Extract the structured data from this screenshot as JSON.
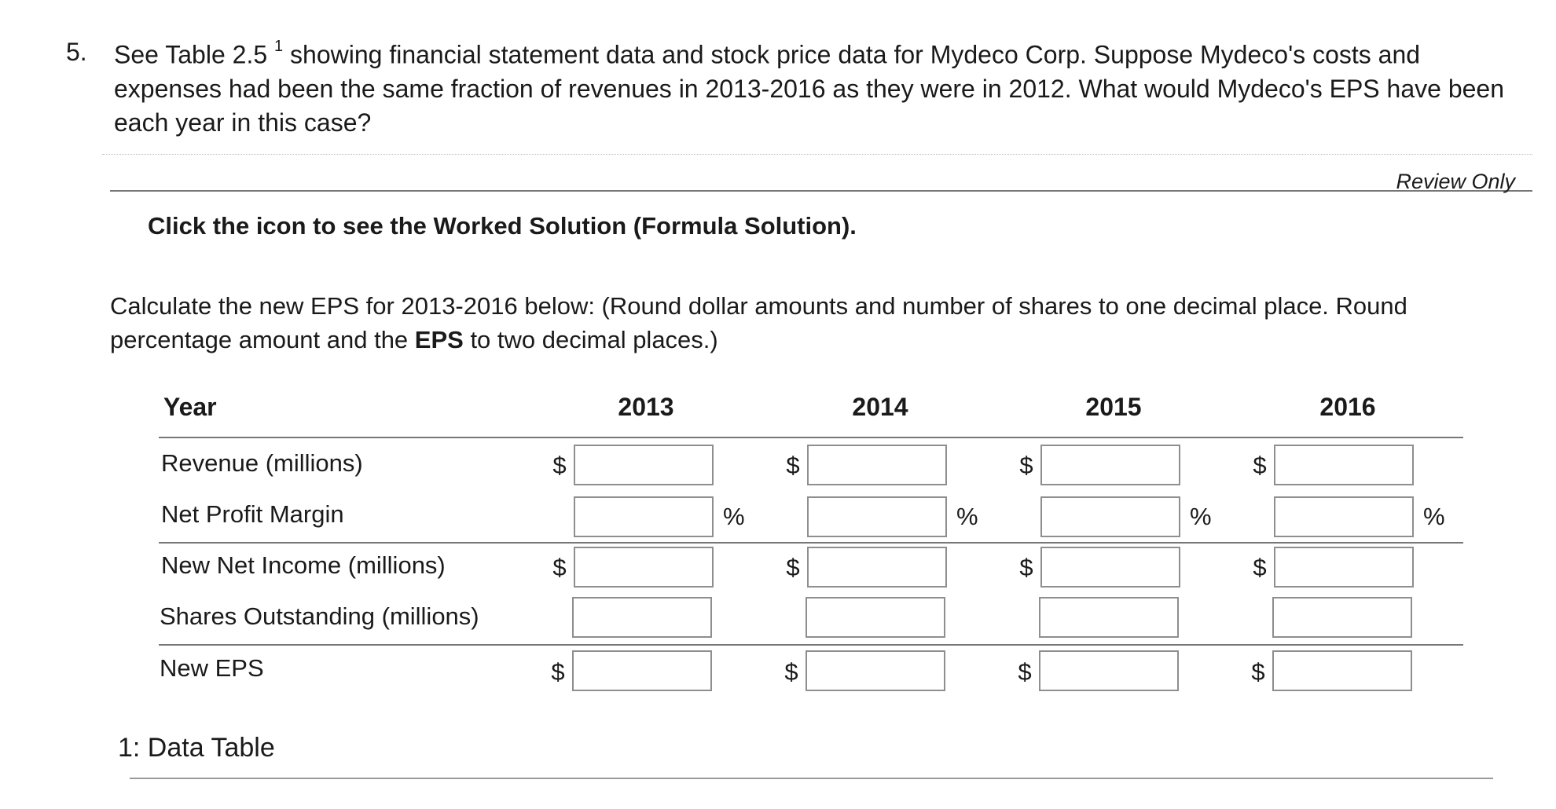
{
  "question": {
    "number": "5.",
    "text_before_sup": "See Table 2.5 ",
    "superscript": "1",
    "text_after_sup": " showing financial statement data and stock price data for Mydeco Corp. Suppose Mydeco's costs and expenses had been the same fraction of revenues in 2013-2016 as they were in 2012. What would Mydeco's EPS have been each year in this case?"
  },
  "review_label": "Review Only",
  "worked_solution_text": "Click the icon to see the Worked Solution (Formula Solution).",
  "instructions": {
    "part1": "Calculate the new EPS for 2013-2016 below:  (Round dollar amounts and number of shares to one decimal place. Round percentage amount and the ",
    "bold": "EPS",
    "part2": " to two decimal places.)"
  },
  "table": {
    "year_label": "Year",
    "years": [
      "2013",
      "2014",
      "2015",
      "2016"
    ],
    "rows": [
      {
        "label": "Revenue (millions)",
        "prefix": "$",
        "suffix": "",
        "values": [
          "",
          "",
          "",
          ""
        ]
      },
      {
        "label": "Net Profit Margin",
        "prefix": "",
        "suffix": "%",
        "values": [
          "",
          "",
          "",
          ""
        ]
      },
      {
        "label": "New Net Income (millions)",
        "prefix": "$",
        "suffix": "",
        "values": [
          "",
          "",
          "",
          ""
        ]
      },
      {
        "label": "Shares Outstanding (millions)",
        "prefix": "",
        "suffix": "",
        "values": [
          "",
          "",
          "",
          ""
        ]
      },
      {
        "label": "New EPS",
        "prefix": "$",
        "suffix": "",
        "values": [
          "",
          "",
          "",
          ""
        ]
      }
    ]
  },
  "data_table_link": "1: Data Table"
}
